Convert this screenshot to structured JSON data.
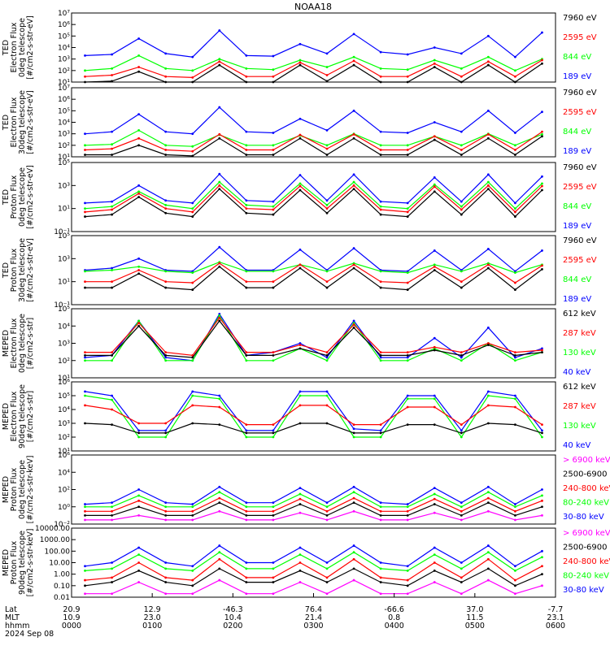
{
  "title": "NOAA18",
  "date_label": "2024 Sep 08",
  "colors": {
    "black": "#000000",
    "blue": "#0000ff",
    "red": "#ff0000",
    "green": "#00ff00",
    "magenta": "#ff00ff"
  },
  "orbit_axis": {
    "row_labels": [
      "Lat",
      "MLT",
      "hhmm"
    ],
    "rows": [
      [
        "20.9",
        "12.9",
        "-46.3",
        "76.4",
        "-66.6",
        "37.0",
        "-7.7"
      ],
      [
        "10.9",
        "23.0",
        "10.4",
        "21.4",
        "0.8",
        "11.5",
        "23.1"
      ],
      [
        "0000",
        "0100",
        "0200",
        "0300",
        "0400",
        "0500",
        "0600"
      ]
    ]
  },
  "chart_data": [
    {
      "type": "line",
      "ylabel": [
        "TED",
        "Electron Flux",
        "0deg telescope",
        "[#/cm2-s-str-eV]"
      ],
      "yscale": "log",
      "ylim": [
        10,
        10000000
      ],
      "yticks": [
        "10¹",
        "10²",
        "10³",
        "10⁴",
        "10⁵",
        "10⁶",
        "10⁷"
      ],
      "legend": [
        "7960 eV",
        "2595 eV",
        "844 eV",
        "189 eV"
      ],
      "legend_colors": [
        "#000000",
        "#ff0000",
        "#00ff00",
        "#0000ff"
      ],
      "series": [
        {
          "name": "189 eV",
          "color": "#0000ff",
          "values": [
            2000,
            2500,
            60000,
            3000,
            1500,
            300000,
            2000,
            1800,
            20000,
            3000,
            150000,
            4000,
            2500,
            10000,
            3000,
            100000,
            1500,
            200000
          ]
        },
        {
          "name": "844 eV",
          "color": "#00ff00",
          "values": [
            100,
            150,
            2000,
            150,
            100,
            1000,
            150,
            120,
            800,
            200,
            1500,
            150,
            120,
            800,
            150,
            1500,
            100,
            1000
          ]
        },
        {
          "name": "2595 eV",
          "color": "#ff0000",
          "values": [
            30,
            40,
            200,
            30,
            25,
            600,
            30,
            30,
            500,
            40,
            700,
            30,
            30,
            400,
            30,
            600,
            30,
            800
          ]
        },
        {
          "name": "7960 eV",
          "color": "#000000",
          "values": [
            10,
            12,
            80,
            10,
            10,
            300,
            10,
            10,
            300,
            12,
            300,
            10,
            10,
            200,
            10,
            300,
            10,
            400
          ]
        }
      ]
    },
    {
      "type": "line",
      "ylabel": [
        "TED",
        "Electron Flux",
        "30deg telescope",
        "[#/cm2-s-str-eV]"
      ],
      "yscale": "log",
      "ylim": [
        10,
        10000000
      ],
      "yticks": [
        "10¹",
        "10²",
        "10³",
        "10⁴",
        "10⁵",
        "10⁶",
        "10⁷"
      ],
      "legend": [
        "7960 eV",
        "2595 eV",
        "844 eV",
        "189 eV"
      ],
      "legend_colors": [
        "#000000",
        "#ff0000",
        "#00ff00",
        "#0000ff"
      ],
      "series": [
        {
          "name": "189 eV",
          "color": "#0000ff",
          "values": [
            1000,
            1500,
            50000,
            1500,
            1000,
            200000,
            1500,
            1200,
            20000,
            2000,
            100000,
            1500,
            1200,
            10000,
            1500,
            100000,
            1200,
            80000
          ]
        },
        {
          "name": "844 eV",
          "color": "#00ff00",
          "values": [
            100,
            120,
            2000,
            100,
            80,
            800,
            100,
            100,
            700,
            100,
            1000,
            100,
            100,
            600,
            100,
            1000,
            100,
            900
          ]
        },
        {
          "name": "2595 eV",
          "color": "#ff0000",
          "values": [
            40,
            50,
            400,
            40,
            30,
            900,
            40,
            40,
            800,
            50,
            900,
            40,
            40,
            600,
            40,
            900,
            40,
            1500
          ]
        },
        {
          "name": "7960 eV",
          "color": "#000000",
          "values": [
            15,
            15,
            100,
            15,
            12,
            400,
            15,
            15,
            400,
            15,
            400,
            15,
            15,
            300,
            15,
            400,
            15,
            600
          ]
        }
      ]
    },
    {
      "type": "line",
      "ylabel": [
        "TED",
        "Proton Flux",
        "0deg telescope",
        "[#/cm2-s-str-eV]"
      ],
      "yscale": "log",
      "ylim": [
        0.1,
        100000
      ],
      "yticks": [
        "10⁻¹",
        "10¹",
        "10³",
        "10⁵"
      ],
      "legend": [
        "7960 eV",
        "2595 eV",
        "844 eV",
        "189 eV"
      ],
      "legend_colors": [
        "#000000",
        "#ff0000",
        "#00ff00",
        "#0000ff"
      ],
      "series": [
        {
          "name": "189 eV",
          "color": "#0000ff",
          "values": [
            30,
            40,
            1000,
            50,
            30,
            10000,
            50,
            40,
            8000,
            50,
            9000,
            40,
            30,
            5000,
            40,
            9000,
            30,
            6000
          ]
        },
        {
          "name": "844 eV",
          "color": "#00ff00",
          "values": [
            10,
            15,
            300,
            20,
            10,
            2000,
            20,
            15,
            1500,
            20,
            2000,
            15,
            10,
            1200,
            15,
            2000,
            10,
            1500
          ]
        },
        {
          "name": "2595 eV",
          "color": "#ff0000",
          "values": [
            5,
            8,
            200,
            10,
            5,
            1000,
            10,
            8,
            900,
            10,
            1000,
            8,
            5,
            800,
            8,
            1000,
            5,
            900
          ]
        },
        {
          "name": "7960 eV",
          "color": "#000000",
          "values": [
            2,
            3,
            100,
            4,
            2,
            500,
            4,
            3,
            400,
            4,
            500,
            3,
            2,
            300,
            3,
            500,
            2,
            400
          ]
        }
      ]
    },
    {
      "type": "line",
      "ylabel": [
        "TED",
        "Proton Flux",
        "30deg telescope",
        "[#/cm2-s-str-eV]"
      ],
      "yscale": "log",
      "ylim": [
        0.1,
        100000
      ],
      "yticks": [
        "10⁻¹",
        "10¹",
        "10³",
        "10⁵"
      ],
      "legend": [
        "7960 eV",
        "2595 eV",
        "844 eV",
        "189 eV"
      ],
      "legend_colors": [
        "#000000",
        "#ff0000",
        "#00ff00",
        "#0000ff"
      ],
      "series": [
        {
          "name": "189 eV",
          "color": "#0000ff",
          "values": [
            100,
            150,
            1000,
            100,
            80,
            10000,
            100,
            100,
            6000,
            100,
            8000,
            100,
            80,
            5000,
            100,
            7000,
            80,
            5000
          ]
        },
        {
          "name": "844 eV",
          "color": "#00ff00",
          "values": [
            80,
            100,
            200,
            80,
            60,
            500,
            80,
            80,
            300,
            80,
            400,
            80,
            60,
            300,
            80,
            400,
            60,
            300
          ]
        },
        {
          "name": "2595 eV",
          "color": "#ff0000",
          "values": [
            10,
            10,
            100,
            10,
            8,
            400,
            10,
            10,
            300,
            10,
            300,
            10,
            8,
            200,
            10,
            300,
            8,
            250
          ]
        },
        {
          "name": "7960 eV",
          "color": "#000000",
          "values": [
            3,
            3,
            50,
            3,
            2,
            200,
            3,
            3,
            150,
            3,
            150,
            3,
            2,
            100,
            3,
            150,
            2,
            120
          ]
        }
      ]
    },
    {
      "type": "line",
      "ylabel": [
        "MEPED",
        "Electron Flux",
        "0deg telescope",
        "[#/cm2-s-str]"
      ],
      "yscale": "log",
      "ylim": [
        10,
        100000
      ],
      "yticks": [
        "10¹",
        "10²",
        "10³",
        "10⁴",
        "10⁵"
      ],
      "legend": [
        "612 keV",
        "287 keV",
        "130 keV",
        "40 keV"
      ],
      "legend_colors": [
        "#000000",
        "#ff0000",
        "#00ff00",
        "#0000ff"
      ],
      "series": [
        {
          "name": "40 keV",
          "color": "#0000ff",
          "values": [
            150,
            200,
            20000,
            150,
            100,
            50000,
            200,
            300,
            1000,
            150,
            20000,
            150,
            150,
            2000,
            150,
            8000,
            150,
            500
          ]
        },
        {
          "name": "130 keV",
          "color": "#00ff00",
          "values": [
            100,
            100,
            20000,
            100,
            100,
            40000,
            100,
            100,
            500,
            100,
            15000,
            100,
            100,
            500,
            100,
            1000,
            100,
            300
          ]
        },
        {
          "name": "287 keV",
          "color": "#ff0000",
          "values": [
            300,
            300,
            15000,
            300,
            200,
            30000,
            300,
            300,
            800,
            300,
            12000,
            300,
            300,
            600,
            300,
            1000,
            300,
            400
          ]
        },
        {
          "name": "612 keV",
          "color": "#000000",
          "values": [
            200,
            200,
            10000,
            200,
            150,
            20000,
            200,
            200,
            500,
            200,
            8000,
            200,
            200,
            400,
            200,
            800,
            200,
            300
          ]
        }
      ]
    },
    {
      "type": "line",
      "ylabel": [
        "MEPED",
        "Electron Flux",
        "90deg telescope",
        "[#/cm2-s-str]"
      ],
      "yscale": "log",
      "ylim": [
        10,
        1000000
      ],
      "yticks": [
        "10¹",
        "10²",
        "10³",
        "10⁴",
        "10⁵",
        "10⁶"
      ],
      "legend": [
        "612 keV",
        "287 keV",
        "130 keV",
        "40 keV"
      ],
      "legend_colors": [
        "#000000",
        "#ff0000",
        "#00ff00",
        "#0000ff"
      ],
      "series": [
        {
          "name": "40 keV",
          "color": "#0000ff",
          "values": [
            200000,
            100000,
            300,
            300,
            200000,
            100000,
            300,
            300,
            200000,
            200000,
            400,
            300,
            100000,
            100000,
            300,
            200000,
            100000,
            300
          ]
        },
        {
          "name": "130 keV",
          "color": "#00ff00",
          "values": [
            100000,
            50000,
            100,
            100,
            100000,
            60000,
            100,
            100,
            100000,
            100000,
            100,
            100,
            60000,
            60000,
            100,
            100000,
            60000,
            100
          ]
        },
        {
          "name": "287 keV",
          "color": "#ff0000",
          "values": [
            20000,
            10000,
            1000,
            1000,
            20000,
            15000,
            800,
            800,
            20000,
            20000,
            800,
            800,
            15000,
            15000,
            800,
            20000,
            15000,
            800
          ]
        },
        {
          "name": "612 keV",
          "color": "#000000",
          "values": [
            1000,
            800,
            200,
            200,
            1000,
            800,
            200,
            200,
            1000,
            1000,
            200,
            200,
            800,
            800,
            200,
            1000,
            800,
            200
          ]
        }
      ]
    },
    {
      "type": "line",
      "ylabel": [
        "MEPED",
        "Proton Flux",
        "0deg telescope",
        "[#/cm2-s-str-keV]"
      ],
      "yscale": "log",
      "ylim": [
        0.01,
        1000000
      ],
      "yticks": [
        "10⁻²",
        "10⁰",
        "10²",
        "10⁴",
        "10⁶"
      ],
      "legend": [
        "> 6900 keV",
        "2500-6900",
        "240-800 keV",
        "80-240 keV",
        "30-80 keV"
      ],
      "legend_colors": [
        "#ff00ff",
        "#000000",
        "#ff0000",
        "#00ff00",
        "#0000ff"
      ],
      "series": [
        {
          "name": "30-80 keV",
          "color": "#0000ff",
          "values": [
            2,
            3,
            100,
            3,
            2,
            200,
            3,
            3,
            150,
            3,
            200,
            3,
            2,
            150,
            3,
            200,
            2,
            100
          ]
        },
        {
          "name": "80-240 keV",
          "color": "#00ff00",
          "values": [
            1,
            1,
            20,
            1,
            1,
            50,
            1,
            1,
            30,
            1,
            50,
            1,
            1,
            30,
            1,
            50,
            1,
            20
          ]
        },
        {
          "name": "240-800 keV",
          "color": "#ff0000",
          "values": [
            0.3,
            0.3,
            5,
            0.3,
            0.3,
            10,
            0.3,
            0.3,
            8,
            0.3,
            10,
            0.3,
            0.3,
            8,
            0.3,
            10,
            0.3,
            5
          ]
        },
        {
          "name": "2500-6900",
          "color": "#000000",
          "values": [
            0.1,
            0.1,
            1,
            0.1,
            0.1,
            3,
            0.1,
            0.1,
            2,
            0.1,
            3,
            0.1,
            0.1,
            2,
            0.1,
            3,
            0.1,
            1
          ]
        },
        {
          "name": "> 6900 keV",
          "color": "#ff00ff",
          "values": [
            0.03,
            0.03,
            0.1,
            0.03,
            0.03,
            0.3,
            0.03,
            0.03,
            0.2,
            0.03,
            0.3,
            0.03,
            0.03,
            0.2,
            0.03,
            0.3,
            0.03,
            0.1
          ]
        }
      ]
    },
    {
      "type": "line",
      "ylabel": [
        "MEPED",
        "Proton Flux",
        "90deg telescope",
        "[#/cm2-s-str-keV]"
      ],
      "yscale": "log",
      "ylim": [
        0.01,
        10000
      ],
      "yticks": [
        "0.01",
        "0.10",
        "1.00",
        "10.00",
        "100.00",
        "1000.00",
        "10000.00"
      ],
      "legend": [
        "> 6900 keV",
        "2500-6900",
        "240-800 keV",
        "80-240 keV",
        "30-80 keV"
      ],
      "legend_colors": [
        "#ff00ff",
        "#000000",
        "#ff0000",
        "#00ff00",
        "#0000ff"
      ],
      "series": [
        {
          "name": "30-80 keV",
          "color": "#0000ff",
          "values": [
            5,
            10,
            200,
            10,
            5,
            300,
            10,
            10,
            200,
            10,
            300,
            10,
            5,
            200,
            10,
            300,
            5,
            100
          ]
        },
        {
          "name": "80-240 keV",
          "color": "#00ff00",
          "values": [
            2,
            3,
            50,
            3,
            2,
            80,
            3,
            3,
            50,
            3,
            80,
            3,
            2,
            50,
            3,
            80,
            2,
            30
          ]
        },
        {
          "name": "240-800 keV",
          "color": "#ff0000",
          "values": [
            0.3,
            0.5,
            10,
            0.5,
            0.3,
            20,
            0.5,
            0.5,
            10,
            0.5,
            20,
            0.5,
            0.3,
            10,
            0.5,
            20,
            0.3,
            5
          ]
        },
        {
          "name": "2500-6900",
          "color": "#000000",
          "values": [
            0.1,
            0.2,
            2,
            0.2,
            0.1,
            3,
            0.2,
            0.2,
            2,
            0.2,
            3,
            0.2,
            0.1,
            2,
            0.2,
            3,
            0.1,
            1
          ]
        },
        {
          "name": "> 6900 keV",
          "color": "#ff00ff",
          "values": [
            0.02,
            0.02,
            0.2,
            0.02,
            0.02,
            0.3,
            0.02,
            0.02,
            0.2,
            0.02,
            0.3,
            0.02,
            0.02,
            0.2,
            0.02,
            0.3,
            0.02,
            0.1
          ]
        }
      ]
    }
  ]
}
